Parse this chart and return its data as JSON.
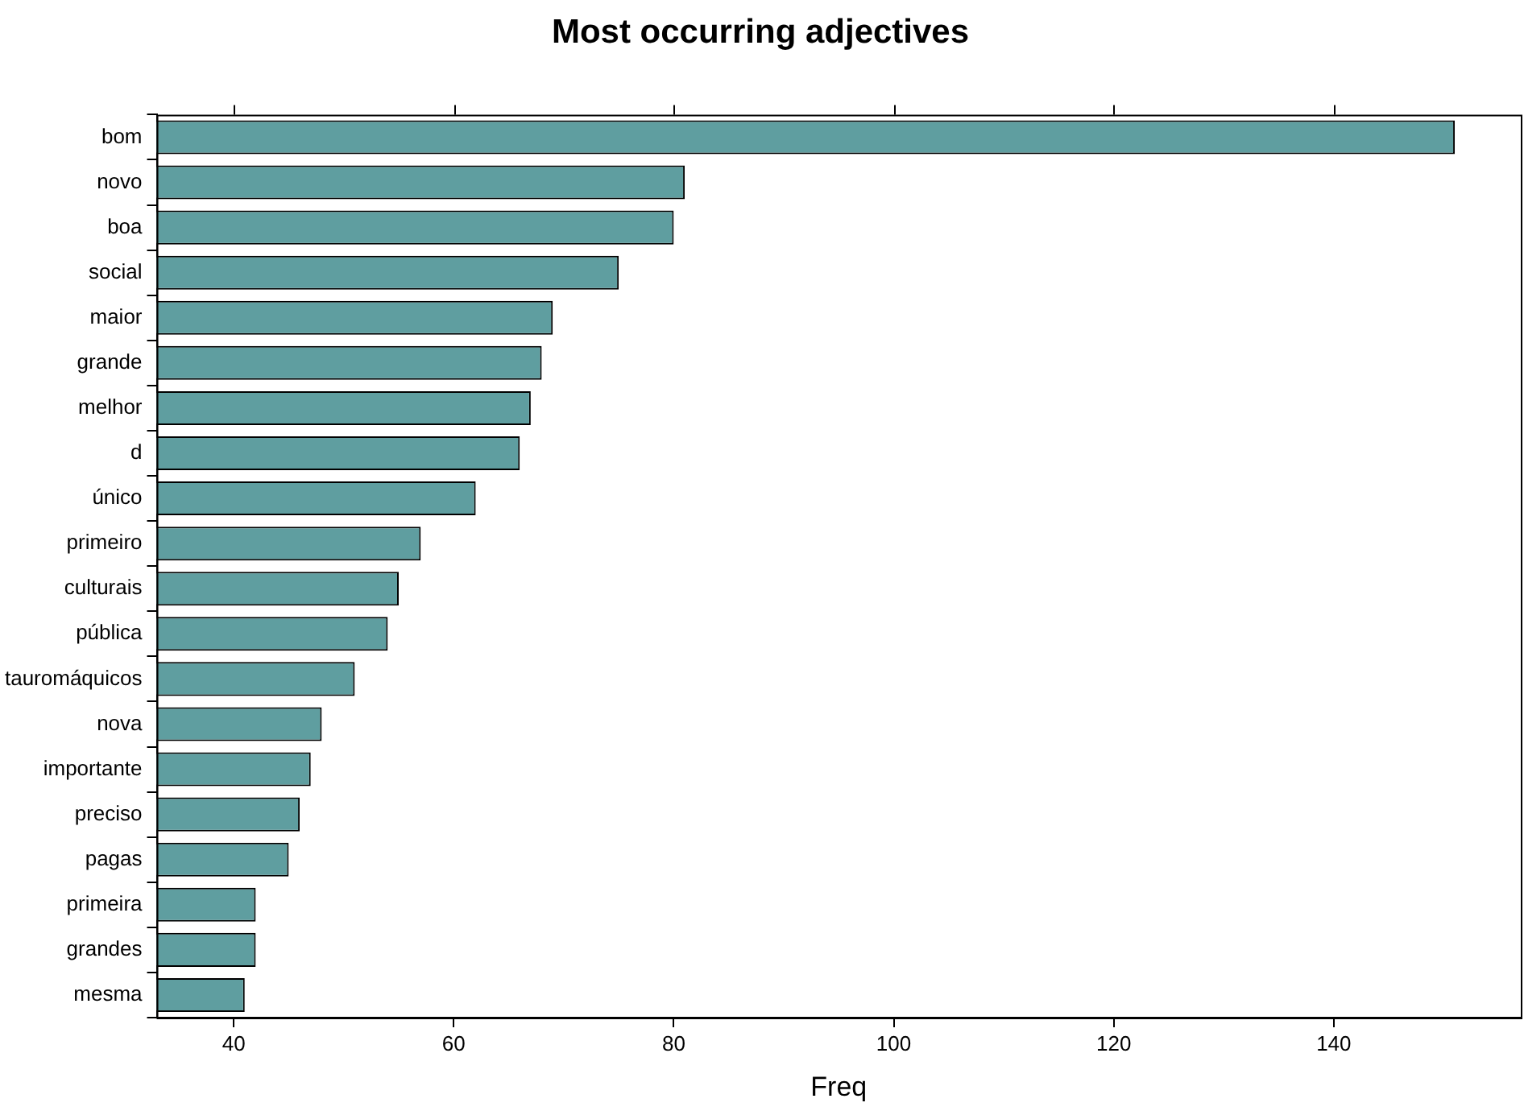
{
  "chart_data": {
    "type": "bar",
    "orientation": "horizontal",
    "title": "Most occurring adjectives",
    "xlabel": "Freq",
    "categories": [
      "bom",
      "novo",
      "boa",
      "social",
      "maior",
      "grande",
      "melhor",
      "d",
      "único",
      "primeiro",
      "culturais",
      "pública",
      "tauromáquicos",
      "nova",
      "importante",
      "preciso",
      "pagas",
      "primeira",
      "grandes",
      "mesma"
    ],
    "values": [
      151,
      81,
      80,
      75,
      69,
      68,
      67,
      66,
      62,
      57,
      55,
      54,
      51,
      48,
      47,
      46,
      45,
      42,
      42,
      41
    ],
    "color": "#5f9ea0",
    "xlim": [
      33,
      157
    ],
    "xticks": [
      40,
      60,
      80,
      100,
      120,
      140
    ],
    "grid": false,
    "legend": false
  }
}
